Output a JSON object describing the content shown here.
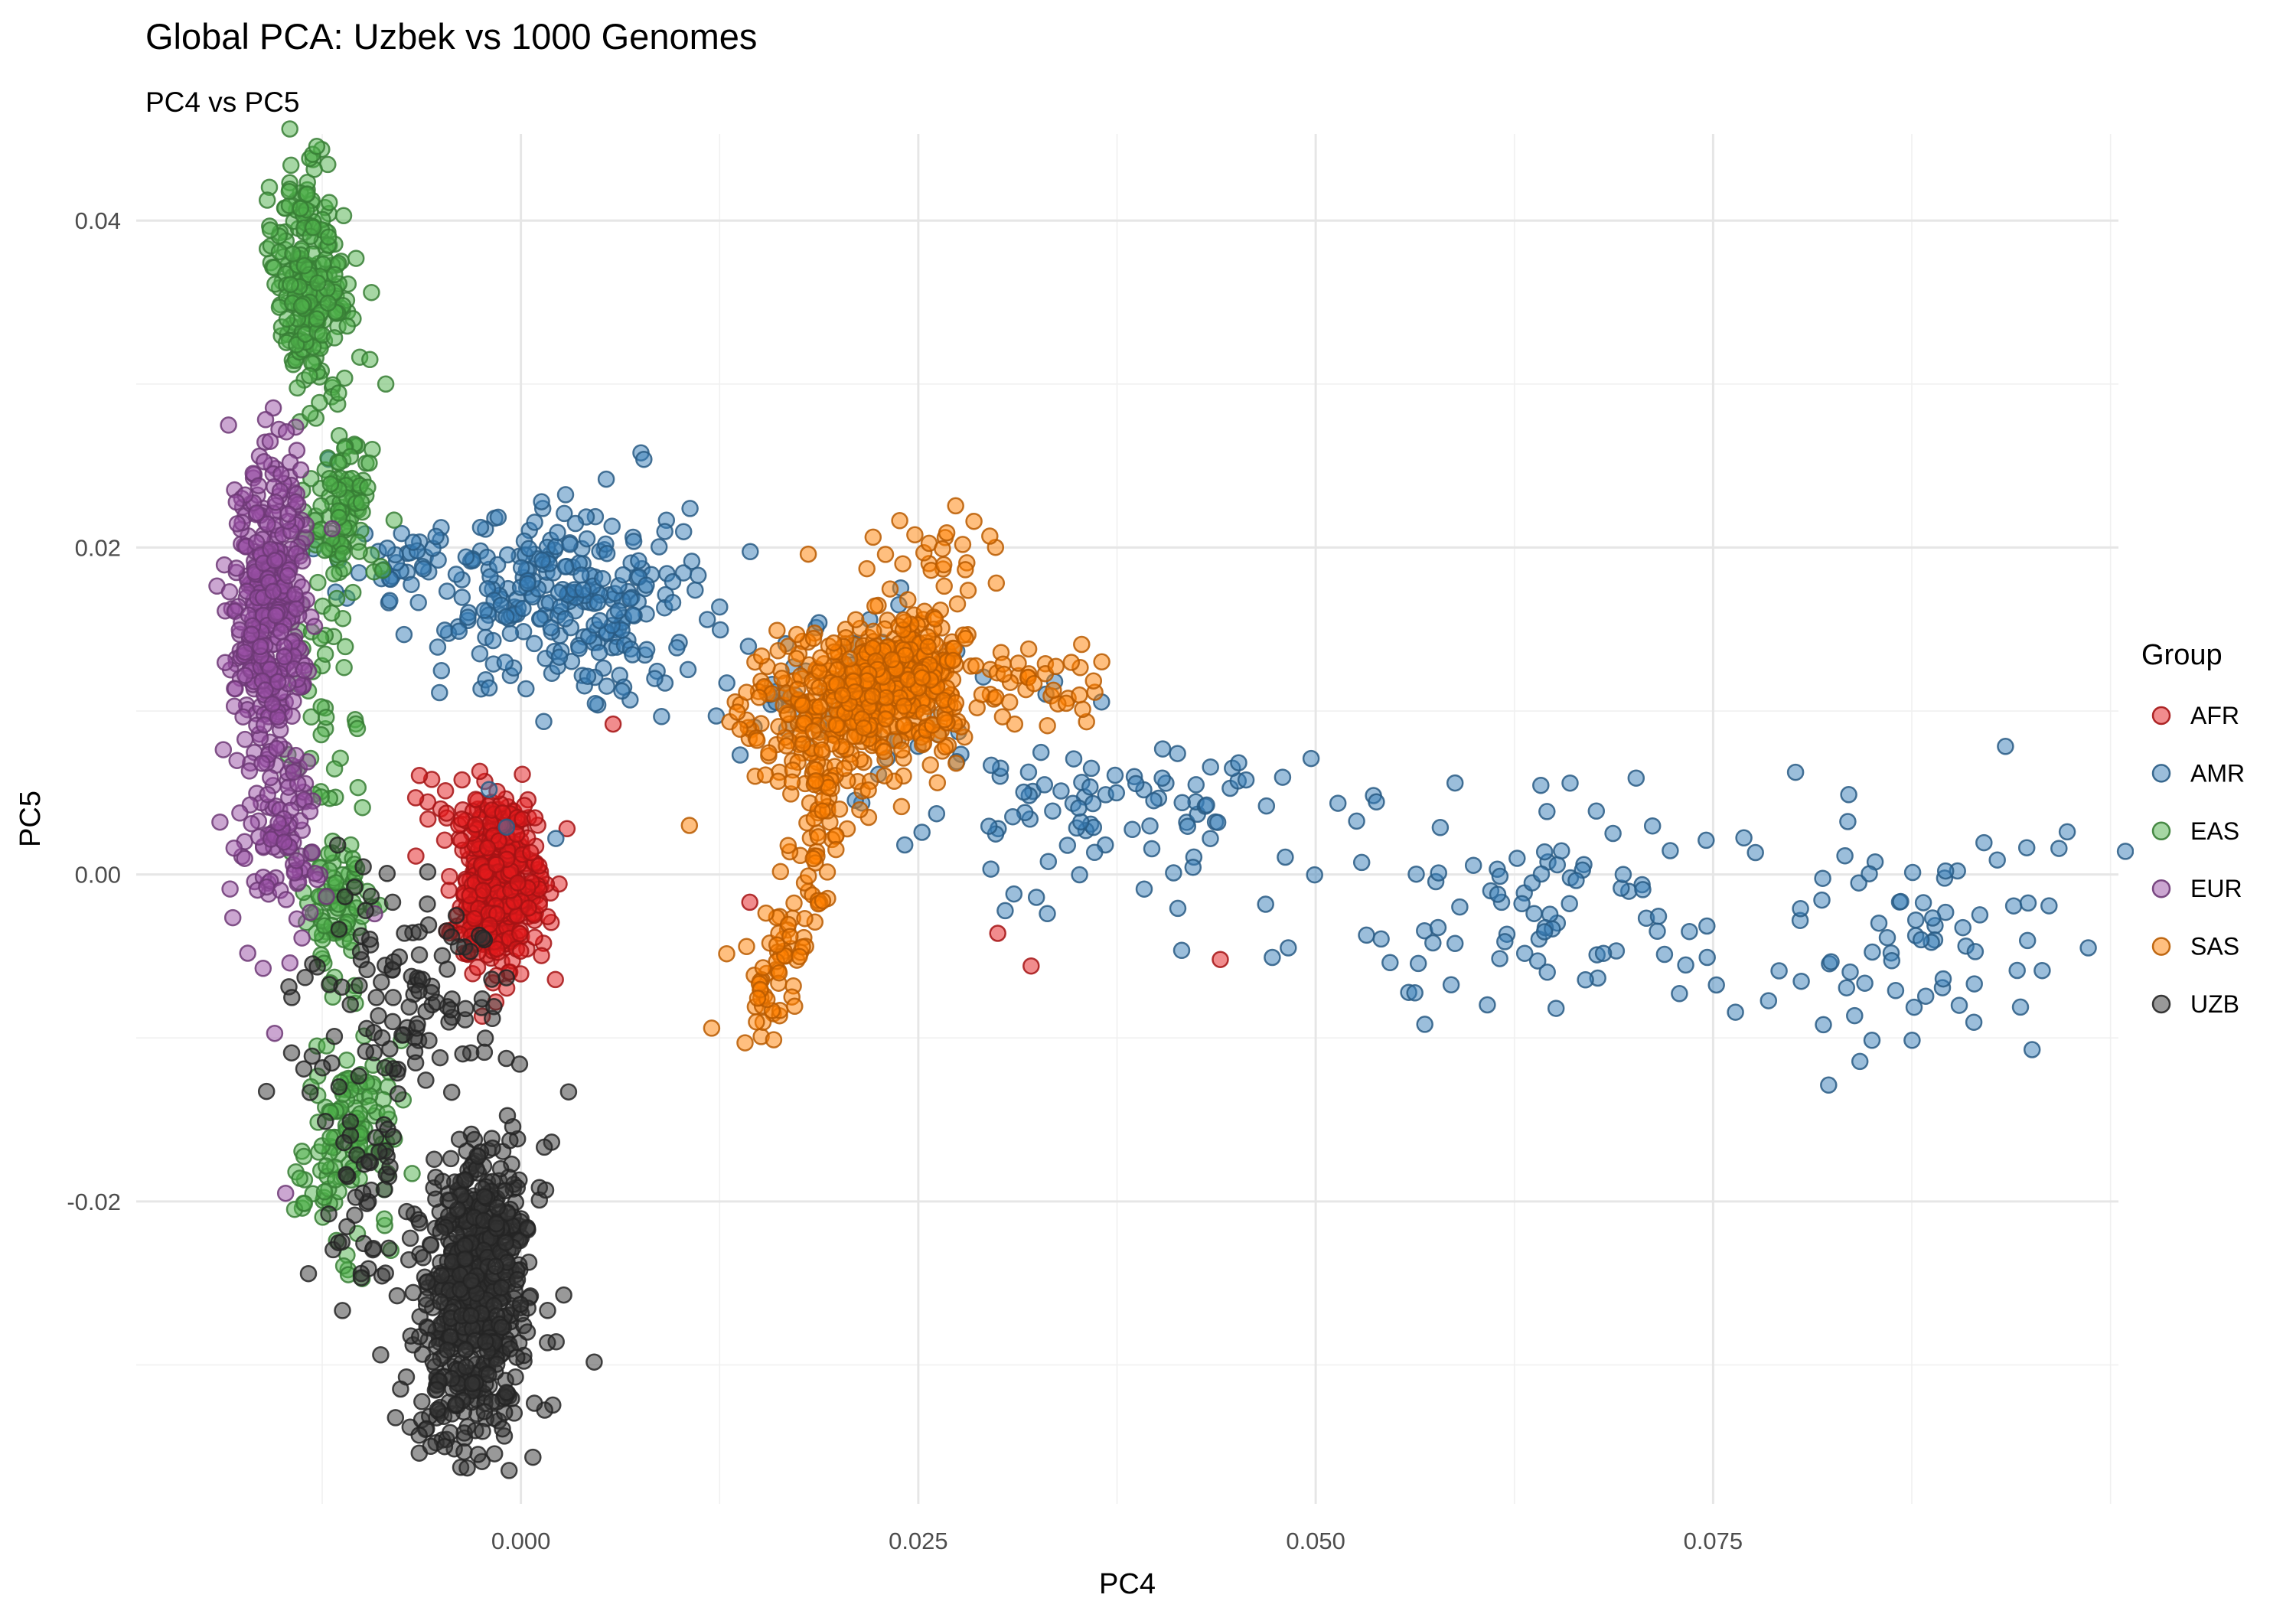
{
  "title": "Global PCA: Uzbek vs 1000 Genomes",
  "subtitle": "PC4 vs PC5",
  "chart_data": {
    "type": "scatter",
    "title": "Global PCA: Uzbek vs 1000 Genomes",
    "subtitle": "PC4 vs PC5",
    "xlabel": "PC4",
    "ylabel": "PC5",
    "legend_title": "Group",
    "legend_position": "right",
    "grid": true,
    "background": "#ffffff",
    "grid_color_major": "#e6e6e6",
    "grid_color_minor": "#f0f0f0",
    "tick_label_color": "#4d4d4d",
    "xlim": [
      -0.0242,
      0.1005
    ],
    "ylim": [
      -0.0385,
      0.0453
    ],
    "x_ticks": [
      0.0,
      0.025,
      0.05,
      0.075
    ],
    "x_tick_labels": [
      "0.000",
      "0.025",
      "0.050",
      "0.075"
    ],
    "x_minor_ticks": [
      -0.0125,
      0.0125,
      0.0375,
      0.0625,
      0.0875,
      0.1
    ],
    "y_ticks": [
      -0.02,
      0.0,
      0.02,
      0.04
    ],
    "y_tick_labels": [
      "-0.02",
      "0.00",
      "0.02",
      "0.04"
    ],
    "y_minor_ticks": [
      -0.03,
      -0.01,
      0.01,
      0.03
    ],
    "point_alpha": 0.5,
    "point_radius_px": 10,
    "seed": 42,
    "series": [
      {
        "name": "AFR",
        "color": "#E41A1C",
        "clusters": [
          {
            "x": -0.0015,
            "y": -0.0008,
            "sx": 0.0014,
            "sy": 0.0024,
            "n": 430
          },
          {
            "x": -0.003,
            "y": 0.0032,
            "sx": 0.002,
            "sy": 0.0014,
            "n": 35
          }
        ],
        "bands": [],
        "outliers": [
          [
            0.0058,
            0.0092
          ],
          [
            0.0029,
            0.0028
          ],
          [
            0.0144,
            -0.0017
          ],
          [
            0.03,
            -0.0036
          ],
          [
            0.0321,
            -0.0056
          ],
          [
            0.044,
            -0.0052
          ]
        ]
      },
      {
        "name": "AMR",
        "color": "#377EB8",
        "clusters": [
          {
            "x": 0.003,
            "y": 0.0168,
            "sx": 0.0042,
            "sy": 0.0028,
            "n": 250
          },
          {
            "x": -0.0068,
            "y": 0.0192,
            "sx": 0.0026,
            "sy": 0.0013,
            "n": 40
          },
          {
            "x": 0.021,
            "y": 0.0112,
            "sx": 0.0038,
            "sy": 0.0026,
            "n": 70
          },
          {
            "x": 0.038,
            "y": 0.0032,
            "sx": 0.0066,
            "sy": 0.0035,
            "n": 100
          },
          {
            "x": 0.065,
            "y": -0.0023,
            "sx": 0.0072,
            "sy": 0.004,
            "n": 90
          },
          {
            "x": 0.0885,
            "y": -0.0041,
            "sx": 0.0058,
            "sy": 0.004,
            "n": 70
          }
        ],
        "bands": [],
        "outliers": [
          [
            -0.0121,
            0.0254
          ],
          [
            0.0013,
            0.0228
          ],
          [
            -0.002,
            0.0052
          ],
          [
            -0.0009,
            0.0029
          ],
          [
            0.0022,
            0.0022
          ]
        ]
      },
      {
        "name": "EAS",
        "color": "#4DAF4A",
        "clusters": [
          {
            "x": -0.0133,
            "y": 0.036,
            "sx": 0.0011,
            "sy": 0.0036,
            "n": 240
          },
          {
            "x": -0.0113,
            "y": 0.0225,
            "sx": 0.001,
            "sy": 0.0023,
            "n": 100
          },
          {
            "x": -0.0125,
            "y": 0.0115,
            "sx": 0.0013,
            "sy": 0.0055,
            "n": 45
          },
          {
            "x": -0.0116,
            "y": -0.0016,
            "sx": 0.0012,
            "sy": 0.0022,
            "n": 80
          },
          {
            "x": -0.0109,
            "y": -0.0162,
            "sx": 0.0014,
            "sy": 0.0037,
            "n": 140
          }
        ],
        "bands": [],
        "outliers": [
          [
            -0.0094,
            0.0356
          ],
          [
            -0.0095,
            0.0315
          ],
          [
            -0.0085,
            0.03
          ],
          [
            -0.0087,
            0.0186
          ]
        ]
      },
      {
        "name": "EUR",
        "color": "#984EA3",
        "clusters": [
          {
            "x": -0.0158,
            "y": 0.0162,
            "sx": 0.0012,
            "sy": 0.0046,
            "n": 380
          },
          {
            "x": -0.0152,
            "y": 0.0026,
            "sx": 0.0013,
            "sy": 0.004,
            "n": 110
          }
        ],
        "bands": [],
        "outliers": [
          [
            -0.0092,
            -0.0024
          ],
          [
            -0.0148,
            -0.0195
          ]
        ]
      },
      {
        "name": "SAS",
        "color": "#FF7F00",
        "clusters": [
          {
            "x": 0.0238,
            "y": 0.0116,
            "sx": 0.0023,
            "sy": 0.0022,
            "n": 380
          },
          {
            "x": 0.0186,
            "y": 0.0098,
            "sx": 0.0024,
            "sy": 0.0026,
            "n": 180
          },
          {
            "x": 0.027,
            "y": 0.0194,
            "sx": 0.0019,
            "sy": 0.0016,
            "n": 22
          },
          {
            "x": 0.0322,
            "y": 0.0119,
            "sx": 0.0026,
            "sy": 0.0017,
            "n": 40
          }
        ],
        "bands": [
          {
            "x1": 0.0195,
            "y1": 0.0058,
            "x2": 0.0148,
            "y2": -0.0092,
            "s": 0.001,
            "n": 110
          }
        ],
        "outliers": [
          [
            0.0285,
            0.0216
          ],
          [
            0.0295,
            0.0207
          ],
          [
            0.0106,
            0.003
          ],
          [
            0.0141,
            -0.0103
          ],
          [
            0.012,
            -0.0094
          ]
        ]
      },
      {
        "name": "UZB",
        "color": "#333333",
        "clusters": [
          {
            "x": -0.0028,
            "y": -0.0224,
            "sx": 0.0015,
            "sy": 0.0027,
            "n": 280
          },
          {
            "x": -0.0029,
            "y": -0.0283,
            "sx": 0.0017,
            "sy": 0.0028,
            "n": 240
          },
          {
            "x": -0.0023,
            "y": -0.0253,
            "sx": 0.0028,
            "sy": 0.005,
            "n": 90
          },
          {
            "x": -0.0067,
            "y": -0.0076,
            "sx": 0.0036,
            "sy": 0.0038,
            "n": 120
          },
          {
            "x": -0.0096,
            "y": -0.0198,
            "sx": 0.0016,
            "sy": 0.0033,
            "n": 40
          },
          {
            "x": -0.0044,
            "y": -0.0328,
            "sx": 0.0016,
            "sy": 0.0019,
            "n": 30
          }
        ],
        "bands": [],
        "outliers": [
          [
            -0.0064,
            -0.0343
          ],
          [
            -0.0048,
            -0.035
          ],
          [
            0.003,
            -0.0133
          ]
        ]
      }
    ]
  }
}
